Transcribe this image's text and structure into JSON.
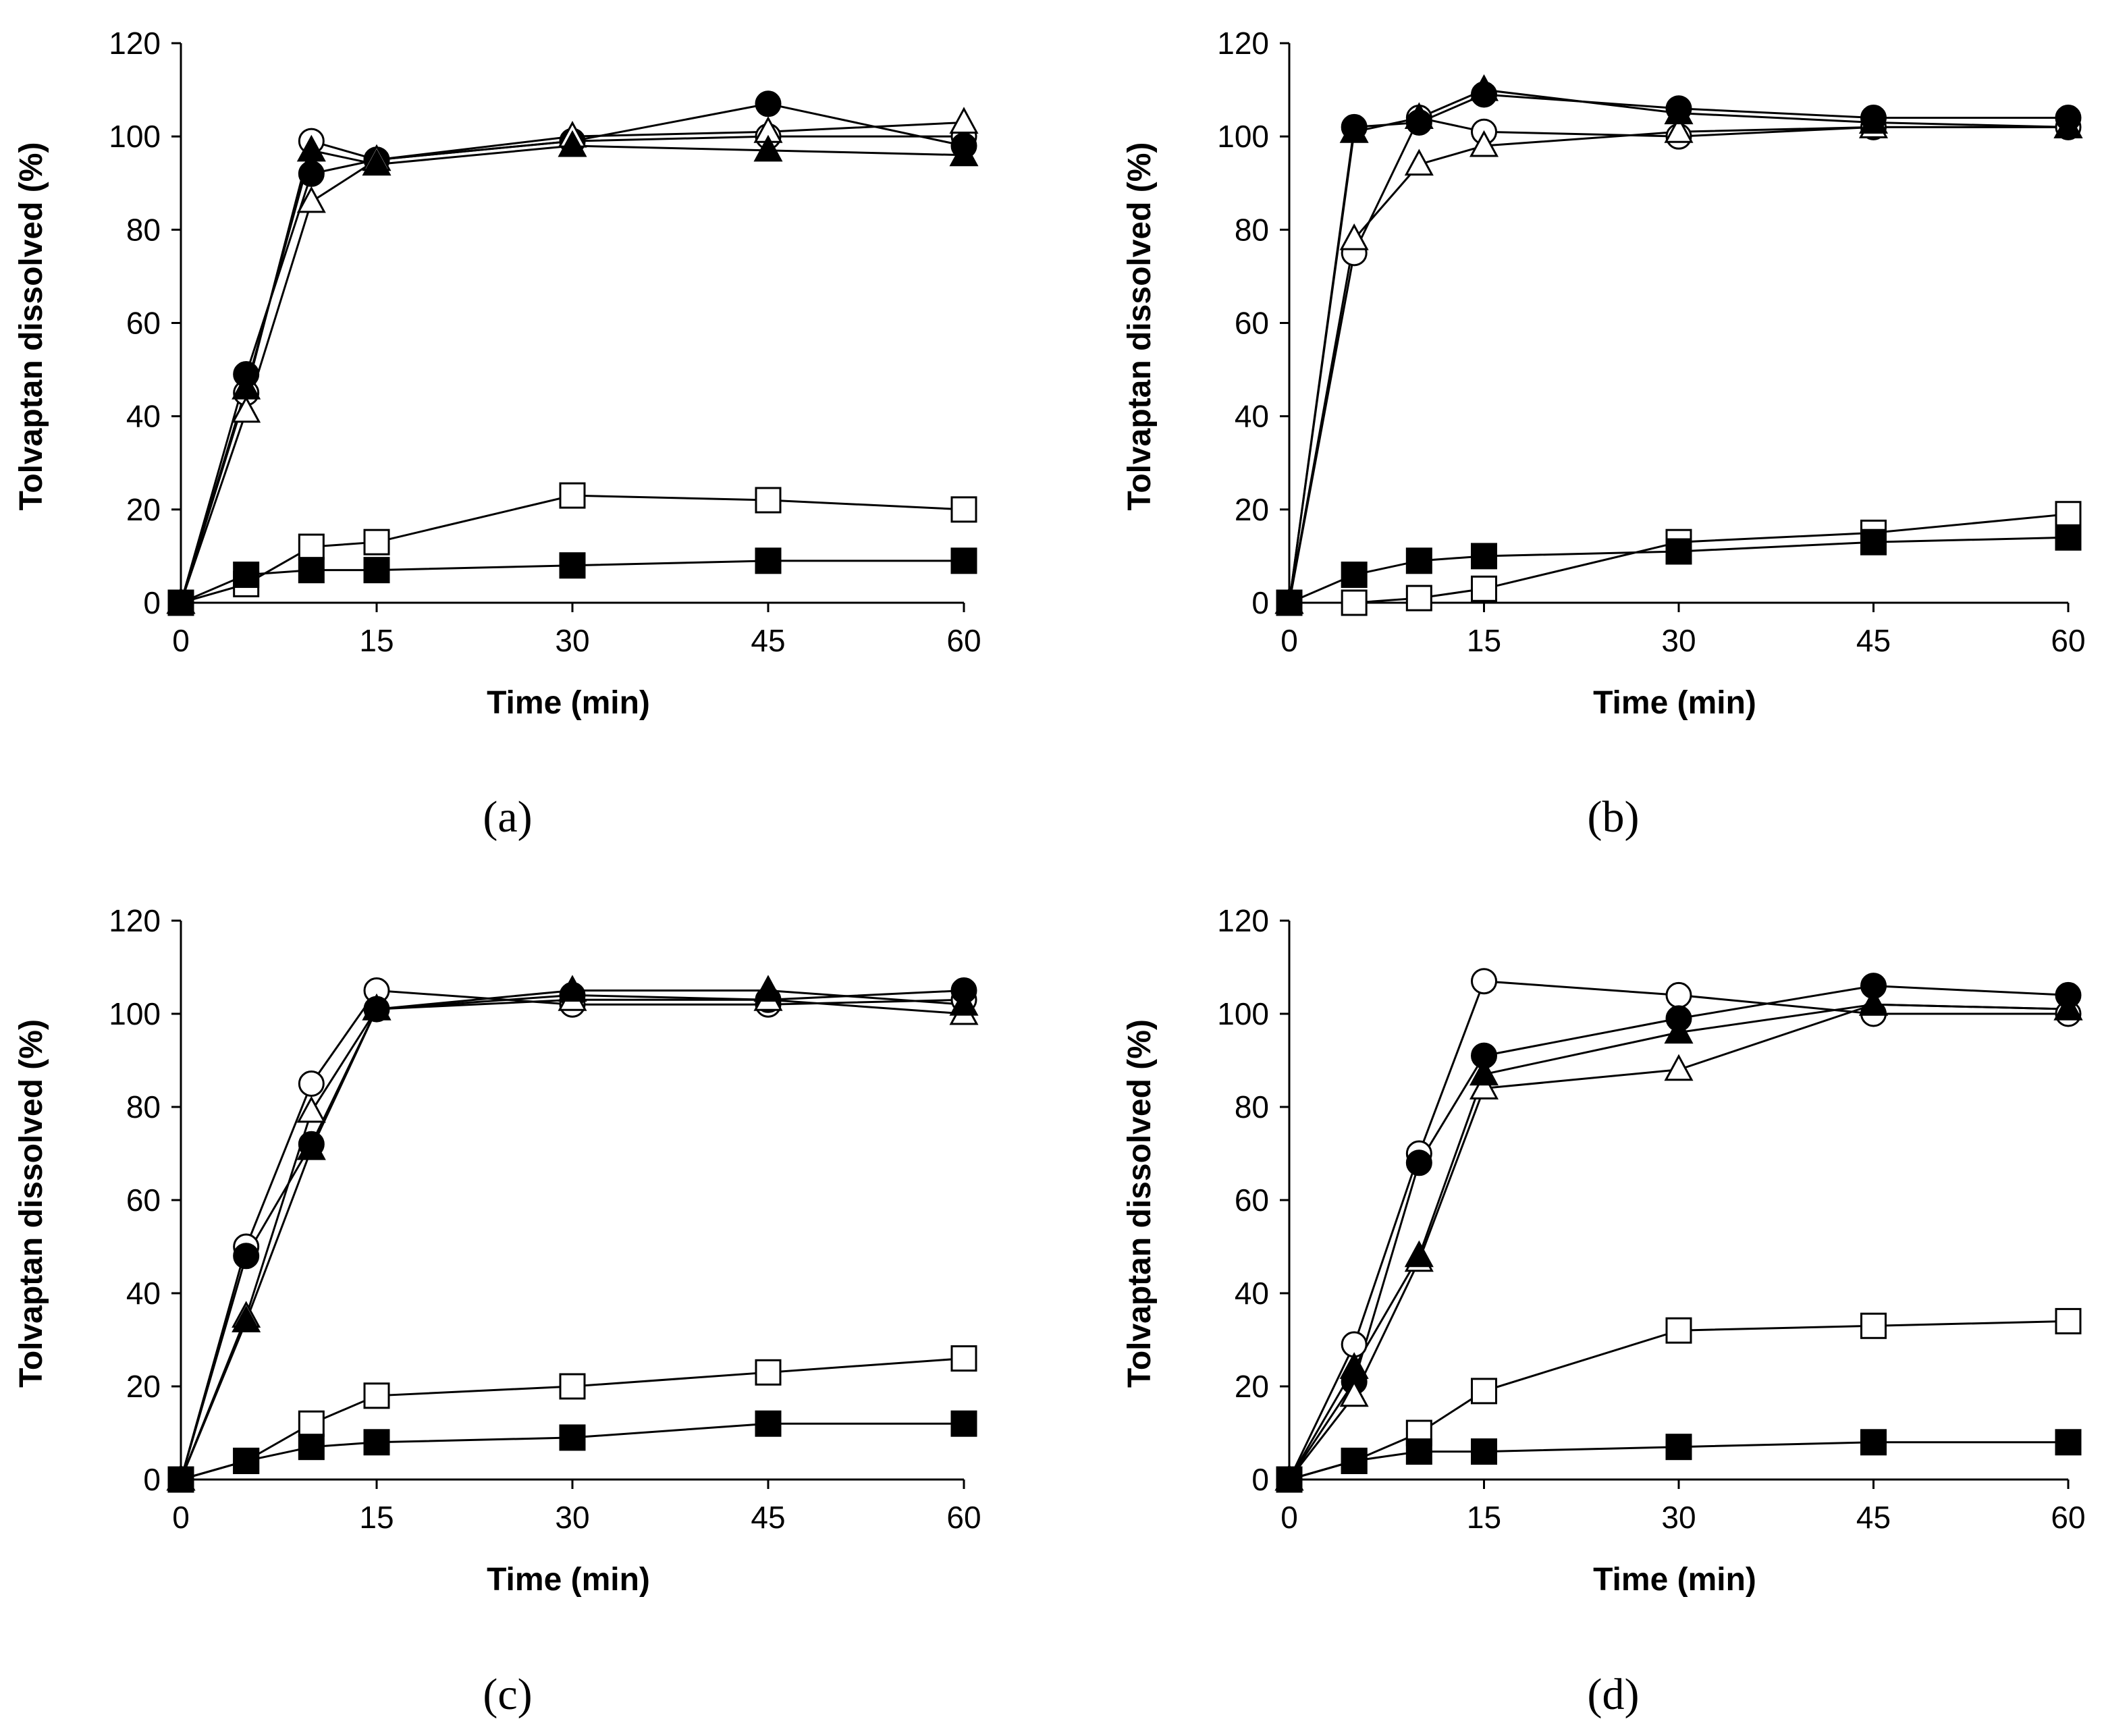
{
  "chart_data": [
    {
      "type": "line",
      "panel_label": "(a)",
      "xlabel": "Time (min)",
      "ylabel": "Tolvaptan dissolved (%)",
      "xlim": [
        0,
        60
      ],
      "ylim": [
        0,
        120
      ],
      "xticks": [
        "0",
        "15",
        "30",
        "45",
        "60"
      ],
      "yticks": [
        "0",
        "20",
        "40",
        "60",
        "80",
        "100",
        "120"
      ],
      "x": [
        0,
        5,
        10,
        15,
        30,
        45,
        60
      ],
      "grid": false,
      "series": [
        {
          "marker": "circle-open",
          "values": [
            0,
            45,
            99,
            95,
            99,
            100,
            100
          ]
        },
        {
          "marker": "circle-filled",
          "values": [
            0,
            49,
            92,
            95,
            99,
            107,
            98
          ]
        },
        {
          "marker": "triangle-open",
          "values": [
            0,
            41,
            86,
            95,
            100,
            101,
            103
          ]
        },
        {
          "marker": "triangle-filled",
          "values": [
            0,
            46,
            97,
            94,
            98,
            97,
            96
          ]
        },
        {
          "marker": "square-open",
          "values": [
            0,
            4,
            12,
            13,
            23,
            22,
            20
          ]
        },
        {
          "marker": "square-filled",
          "values": [
            0,
            6,
            7,
            7,
            8,
            9,
            9
          ]
        }
      ]
    },
    {
      "type": "line",
      "panel_label": "(b)",
      "xlabel": "Time (min)",
      "ylabel": "Tolvaptan dissolved (%)",
      "xlim": [
        0,
        60
      ],
      "ylim": [
        0,
        120
      ],
      "xticks": [
        "0",
        "15",
        "30",
        "45",
        "60"
      ],
      "yticks": [
        "0",
        "20",
        "40",
        "60",
        "80",
        "100",
        "120"
      ],
      "x": [
        0,
        5,
        10,
        15,
        30,
        45,
        60
      ],
      "grid": false,
      "series": [
        {
          "marker": "circle-open",
          "values": [
            0,
            75,
            104,
            101,
            100,
            102,
            102
          ]
        },
        {
          "marker": "circle-filled",
          "values": [
            0,
            102,
            103,
            109,
            106,
            104,
            104
          ]
        },
        {
          "marker": "triangle-open",
          "values": [
            0,
            78,
            94,
            98,
            101,
            102,
            102
          ]
        },
        {
          "marker": "triangle-filled",
          "values": [
            0,
            101,
            104,
            110,
            105,
            103,
            102
          ]
        },
        {
          "marker": "square-open",
          "values": [
            0,
            0,
            1,
            3,
            13,
            15,
            19
          ]
        },
        {
          "marker": "square-filled",
          "values": [
            0,
            6,
            9,
            10,
            11,
            13,
            14
          ]
        }
      ]
    },
    {
      "type": "line",
      "panel_label": "(c)",
      "xlabel": "Time (min)",
      "ylabel": "Tolvaptan dissolved (%)",
      "xlim": [
        0,
        60
      ],
      "ylim": [
        0,
        120
      ],
      "xticks": [
        "0",
        "15",
        "30",
        "45",
        "60"
      ],
      "yticks": [
        "0",
        "20",
        "40",
        "60",
        "80",
        "100",
        "120"
      ],
      "x": [
        0,
        5,
        10,
        15,
        30,
        45,
        60
      ],
      "grid": false,
      "series": [
        {
          "marker": "circle-open",
          "values": [
            0,
            50,
            85,
            105,
            102,
            102,
            103
          ]
        },
        {
          "marker": "circle-filled",
          "values": [
            0,
            48,
            72,
            101,
            104,
            103,
            105
          ]
        },
        {
          "marker": "triangle-open",
          "values": [
            0,
            35,
            79,
            101,
            103,
            103,
            100
          ]
        },
        {
          "marker": "triangle-filled",
          "values": [
            0,
            34,
            71,
            101,
            105,
            105,
            102
          ]
        },
        {
          "marker": "square-open",
          "values": [
            0,
            4,
            12,
            18,
            20,
            23,
            26
          ]
        },
        {
          "marker": "square-filled",
          "values": [
            0,
            4,
            7,
            8,
            9,
            12,
            12
          ]
        }
      ]
    },
    {
      "type": "line",
      "panel_label": "(d)",
      "xlabel": "Time (min)",
      "ylabel": "Tolvaptan dissolved (%)",
      "xlim": [
        0,
        60
      ],
      "ylim": [
        0,
        120
      ],
      "xticks": [
        "0",
        "15",
        "30",
        "45",
        "60"
      ],
      "yticks": [
        "0",
        "20",
        "40",
        "60",
        "80",
        "100",
        "120"
      ],
      "x": [
        0,
        5,
        10,
        15,
        30,
        45,
        60
      ],
      "grid": false,
      "series": [
        {
          "marker": "circle-open",
          "values": [
            0,
            29,
            70,
            107,
            104,
            100,
            100
          ]
        },
        {
          "marker": "circle-filled",
          "values": [
            0,
            21,
            68,
            91,
            99,
            106,
            104
          ]
        },
        {
          "marker": "triangle-open",
          "values": [
            0,
            18,
            47,
            84,
            88,
            102,
            101
          ]
        },
        {
          "marker": "triangle-filled",
          "values": [
            0,
            24,
            48,
            87,
            96,
            102,
            101
          ]
        },
        {
          "marker": "square-open",
          "values": [
            0,
            4,
            10,
            19,
            32,
            33,
            34
          ]
        },
        {
          "marker": "square-filled",
          "values": [
            0,
            4,
            6,
            6,
            7,
            8,
            8
          ]
        }
      ]
    }
  ]
}
